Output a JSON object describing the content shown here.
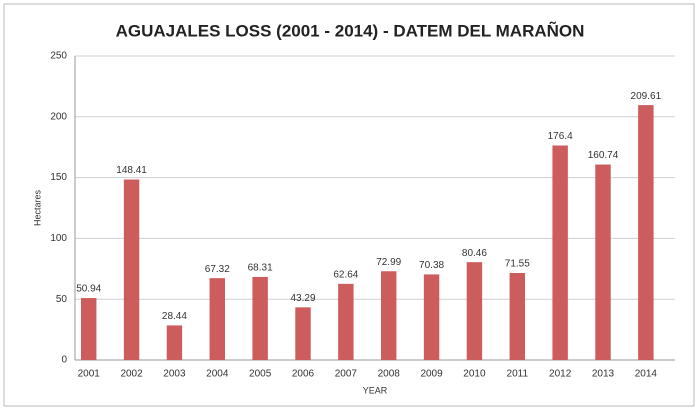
{
  "chart_data": {
    "type": "bar",
    "title": "AGUAJALES LOSS (2001 - 2014) -  DATEM DEL MARAÑON",
    "x_label": "YEAR",
    "y_label": "Hectares",
    "categories": [
      "2001",
      "2002",
      "2003",
      "2004",
      "2005",
      "2006",
      "2007",
      "2008",
      "2009",
      "2010",
      "2011",
      "2012",
      "2013",
      "2014"
    ],
    "values": [
      50.94,
      148.41,
      28.44,
      67.32,
      68.31,
      43.29,
      62.64,
      72.99,
      70.38,
      80.46,
      71.55,
      176.4,
      160.74,
      209.61
    ],
    "color": "#cd5c5c",
    "ylim": [
      0,
      250
    ],
    "yticks": [
      0,
      50,
      100,
      150,
      200,
      250
    ],
    "grid": true
  }
}
